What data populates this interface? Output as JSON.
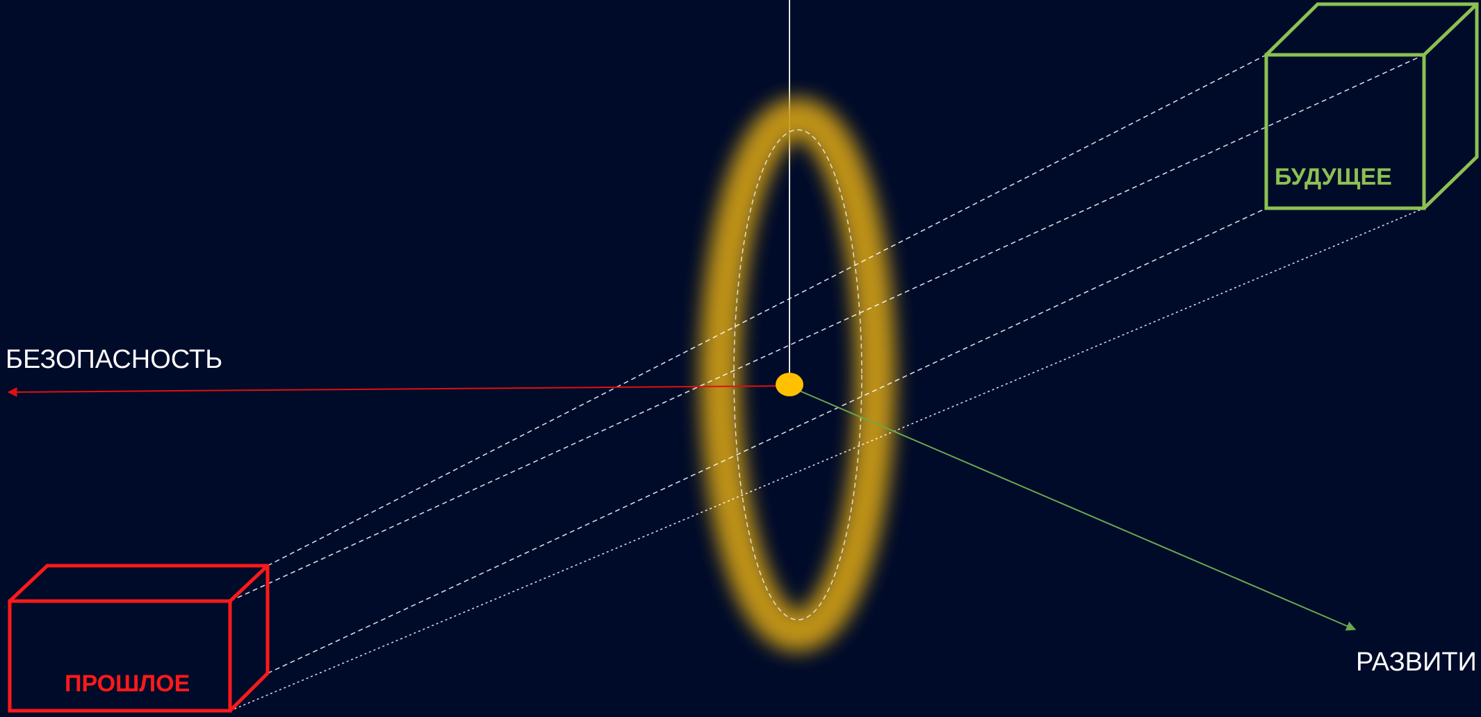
{
  "labels": {
    "safety": "БЕЗОПАСНОСТЬ",
    "development": "РАЗВИТИ",
    "future": "БУДУЩЕЕ",
    "past": "ПРОШЛОЕ"
  },
  "colors": {
    "background": "#000b2a",
    "past": "#ff1a1a",
    "future": "#8cc152",
    "ring": "#d4a017",
    "center": "#ffc000",
    "safety_arrow": "#e01010",
    "development_arrow": "#6aa84f",
    "text": "#ffffff"
  }
}
